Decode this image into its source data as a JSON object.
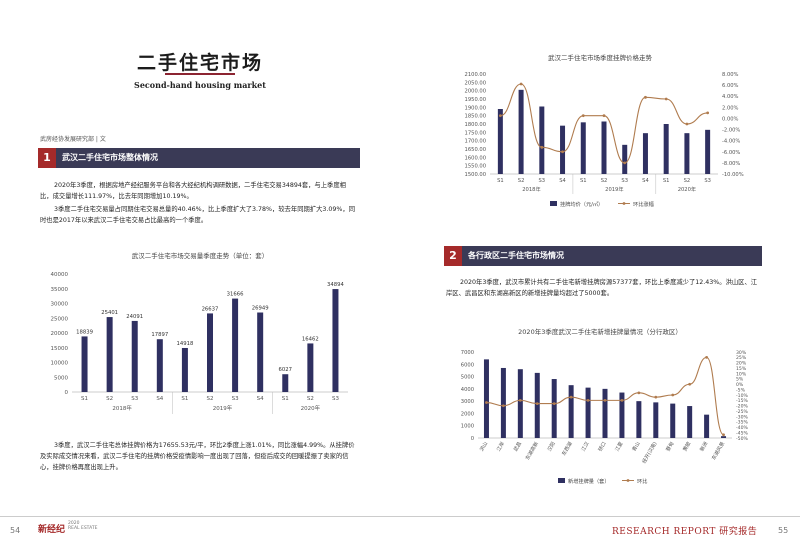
{
  "page": {
    "title_cn": "二手住宅市场",
    "title_en": "Second-hand housing market",
    "author": "武房经协发展研究部 | 文",
    "left_page_number": "54",
    "right_page_number": "55",
    "logo_text": "新经纪",
    "logo_sub1": "2020",
    "logo_sub2": "REAL ESTATE",
    "report_label": "RESEARCH REPORT 研究报告"
  },
  "section1": {
    "number": "1",
    "title": "武汉二手住宅市场整体情况",
    "para1": "2020年3季度，根据房地产经纪服务平台和各大经纪机构调研数据，二手住宅交易34894套，与上季度相比，成交量增长111.97%，比去年同期增加10.19%。",
    "para2": "3季度二手住宅交易量占同期住宅交易总量的40.46%，比上季度扩大了3.78%，较去年同期扩大3.09%，同时也是2017年以来武汉二手住宅交易占比最高的一个季度。",
    "para3": "3季度，武汉二手住宅总体挂牌价格为17655.53元/平，环比2季度上涨1.01%，同比涨幅4.99%。从挂牌价及实际成交情况来看，武汉二手住宅的挂牌价格受疫情影响一度出现了回落，但疫后成交的回暖提振了卖家的信心，挂牌价格再度出现上升。"
  },
  "section2": {
    "number": "2",
    "title": "各行政区二手住宅市场情况",
    "para1": "2020年3季度，武汉市累计共有二手住宅新增挂牌房源57377套，环比上季度减少了12.43%。洪山区、江岸区、武昌区和东湖高新区的新增挂牌量均超过了5000套。"
  },
  "chart_data": [
    {
      "type": "line",
      "title": "武汉二手住宅市场季度挂牌价格走势",
      "categories": [
        "S1",
        "S2",
        "S3",
        "S4",
        "S1",
        "S2",
        "S3",
        "S4",
        "S1",
        "S2",
        "S3"
      ],
      "groups": [
        "2018年",
        "2019年",
        "2020年"
      ],
      "y_ticks": [
        "1500.00",
        "1550.00",
        "1600.00",
        "1650.00",
        "1700.00",
        "1750.00",
        "1800.00",
        "1850.00",
        "1900.00",
        "1950.00",
        "2000.00",
        "2050.00",
        "2100.00"
      ],
      "y2_ticks": [
        "8.00%",
        "6.00%",
        "4.00%",
        "2.00%",
        "0.00%",
        "-2.00%",
        "-4.00%",
        "-6.00%",
        "-8.00%",
        "-10.00%"
      ],
      "ylim": [
        1500,
        2100
      ],
      "y2lim": [
        -10,
        8
      ],
      "series": [
        {
          "name": "挂牌均价（元/㎡）",
          "type": "bar",
          "color": "#2f3061",
          "values": [
            1890,
            2005,
            1905,
            1790,
            1810,
            1815,
            1675,
            1745,
            1800,
            1745,
            1765
          ]
        },
        {
          "name": "环比涨幅",
          "type": "line",
          "color": "#b07c4f",
          "values": [
            0.5,
            6.2,
            -5.2,
            -6.0,
            0.5,
            0.5,
            -8.0,
            3.8,
            3.5,
            -1.0,
            1.0
          ]
        }
      ]
    },
    {
      "type": "bar",
      "title": "武汉二手住宅市场交易量季度走势（单位：套）",
      "categories": [
        "S1",
        "S2",
        "S3",
        "S4",
        "S1",
        "S2",
        "S3",
        "S4",
        "S1",
        "S2",
        "S3"
      ],
      "groups": [
        "2018年",
        "2019年",
        "2020年"
      ],
      "y_ticks": [
        "0",
        "5000",
        "10000",
        "15000",
        "20000",
        "25000",
        "30000",
        "35000",
        "40000"
      ],
      "ylim": [
        0,
        40000
      ],
      "color": "#2f3061",
      "values": [
        18839,
        25401,
        24091,
        17897,
        14918,
        26637,
        31666,
        26949,
        6027,
        16462,
        34894
      ],
      "value_labels": [
        "18839",
        "25401",
        "24091",
        "17897",
        "14918",
        "26637",
        "31666",
        "26949",
        "6027",
        "16462",
        "34894"
      ]
    },
    {
      "type": "bar",
      "title": "2020年3季度武汉二手住宅新增挂牌量情况（分行政区）",
      "categories": [
        "洪山",
        "江岸",
        "武昌",
        "东湖高新",
        "汉阳",
        "东西湖",
        "江汉",
        "硚口",
        "江夏",
        "青山",
        "经开(汉南)",
        "蔡甸",
        "黄陂",
        "新洲",
        "东湖风景"
      ],
      "y_ticks": [
        "0",
        "1000",
        "2000",
        "3000",
        "4000",
        "5000",
        "6000",
        "7000"
      ],
      "y2_ticks": [
        "30%",
        "25%",
        "20%",
        "15%",
        "10%",
        "5%",
        "0%",
        "-5%",
        "-10%",
        "-15%",
        "-20%",
        "-25%",
        "-30%",
        "-35%",
        "-40%",
        "-45%",
        "-50%"
      ],
      "ylim": [
        0,
        7000
      ],
      "y2lim": [
        -50,
        30
      ],
      "series": [
        {
          "name": "新增挂牌量（套）",
          "type": "bar",
          "color": "#2f3061",
          "values": [
            6400,
            5700,
            5600,
            5300,
            4800,
            4300,
            4100,
            4000,
            3700,
            3000,
            2900,
            2800,
            2600,
            1900,
            150
          ]
        },
        {
          "name": "环比",
          "type": "line",
          "color": "#b07c4f",
          "values": [
            -17,
            -20,
            -15,
            -18,
            -18,
            -12,
            -15,
            -15,
            -15,
            -8,
            -12,
            -10,
            0,
            25,
            -47
          ]
        }
      ]
    }
  ]
}
